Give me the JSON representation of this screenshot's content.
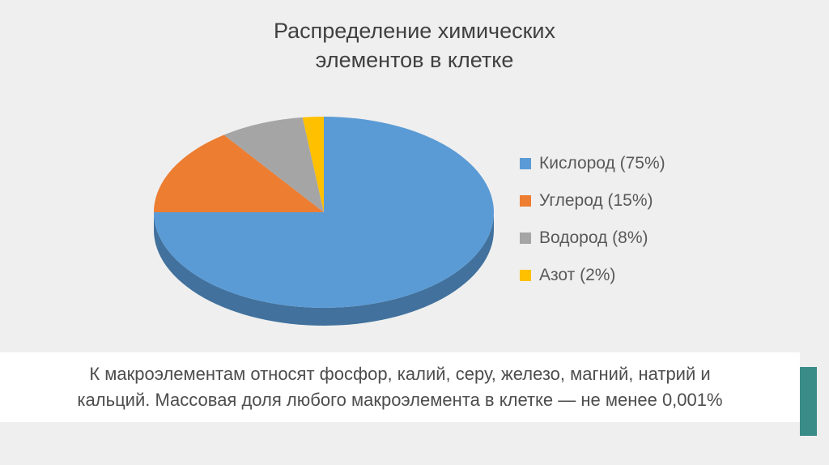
{
  "slide": {
    "title_line1": "Распределение химических",
    "title_line2": "элементов в клетке"
  },
  "chart_data": {
    "type": "pie",
    "title": "Распределение химических элементов в клетке",
    "effect": "3d",
    "start_angle_deg": 0,
    "direction": "clockwise",
    "legend_position": "right",
    "labels": [
      "Кислород",
      "Углерод",
      "Водород",
      "Азот"
    ],
    "values": [
      75,
      15,
      8,
      2
    ],
    "unit": "%",
    "colors": [
      "#5B9BD5",
      "#ED7D31",
      "#A5A5A5",
      "#FFC000"
    ],
    "depth_color": "#41719C",
    "legend": [
      {
        "label": "Кислород (75%)",
        "color": "#5B9BD5"
      },
      {
        "label": "Углерод (15%)",
        "color": "#ED7D31"
      },
      {
        "label": "Водород (8%)",
        "color": "#A5A5A5"
      },
      {
        "label": "Азот (2%)",
        "color": "#FFC000"
      }
    ]
  },
  "footer": {
    "lines": [
      "К макроэлементам относят фосфор, калий, серу, железо, магний, натрий и",
      "кальций. Массовая доля любого макроэлемента в клетке — не менее 0,001%"
    ],
    "accent_color": "#3A8C89",
    "bar_color": "#FFFFFF"
  },
  "colors": {
    "slide_background": "#EFEFEF",
    "title_text": "#404040",
    "body_text": "#4D4D4D",
    "legend_text": "#595959"
  }
}
